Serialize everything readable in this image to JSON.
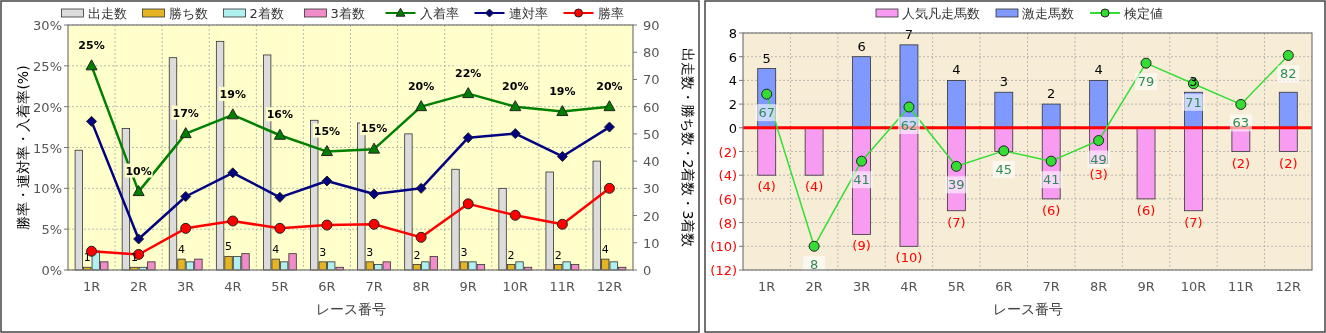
{
  "chart_data": [
    {
      "type": "bar",
      "categories": [
        "1R",
        "2R",
        "3R",
        "4R",
        "5R",
        "6R",
        "7R",
        "8R",
        "9R",
        "10R",
        "11R",
        "12R"
      ],
      "xlabel": "レース番号",
      "ylabel": "勝率・連対率・入着率(%)",
      "y2label": "出走数・勝ち数・2着数・3着数",
      "ylim": [
        0,
        30
      ],
      "yticks": [
        {
          "value": 0,
          "label": "0%"
        },
        {
          "value": 5,
          "label": "5%"
        },
        {
          "value": 10,
          "label": "10%"
        },
        {
          "value": 15,
          "label": "15%"
        },
        {
          "value": 20,
          "label": "20%"
        },
        {
          "value": 25,
          "label": "25%"
        },
        {
          "value": 30,
          "label": "30%"
        }
      ],
      "y2lim": [
        0,
        90
      ],
      "y2ticks": [
        0,
        10,
        20,
        30,
        40,
        50,
        60,
        70,
        80,
        90
      ],
      "grid": true,
      "legend": "top",
      "series": [
        {
          "name": "出走数",
          "type": "bar",
          "axis": "y2",
          "color": "#dcdcdc",
          "values": [
            44,
            52,
            78,
            84,
            79,
            55,
            54,
            50,
            37,
            30,
            36,
            40
          ]
        },
        {
          "name": "勝ち数",
          "type": "bar",
          "axis": "y2",
          "color": "#e6b422",
          "values": [
            1,
            1,
            4,
            5,
            4,
            3,
            3,
            2,
            3,
            2,
            2,
            4
          ],
          "value_labels": [
            "1",
            "1",
            "4",
            "5",
            "4",
            "3",
            "3",
            "2",
            "3",
            "2",
            "2",
            "4"
          ]
        },
        {
          "name": "2着数",
          "type": "bar",
          "axis": "y2",
          "color": "#b0f0f0",
          "values": [
            7,
            1,
            3,
            5,
            3,
            3,
            2,
            3,
            3,
            3,
            3,
            3
          ]
        },
        {
          "name": "3着数",
          "type": "bar",
          "axis": "y2",
          "color": "#f08cc8",
          "values": [
            3,
            3,
            4,
            6,
            6,
            1,
            3,
            5,
            2,
            1,
            2,
            1
          ]
        },
        {
          "name": "入着率",
          "type": "line",
          "color": "#008000",
          "marker": "triangle",
          "values": [
            25,
            9.6,
            16.7,
            19,
            16.5,
            14.5,
            14.8,
            20,
            21.6,
            20,
            19.4,
            20
          ],
          "value_labels": [
            "25%",
            "10%",
            "17%",
            "19%",
            "16%",
            "15%",
            "15%",
            "20%",
            "22%",
            "20%",
            "19%",
            "20%"
          ]
        },
        {
          "name": "連対率",
          "type": "line",
          "color": "#000080",
          "marker": "diamond",
          "values": [
            18.2,
            3.8,
            9,
            11.9,
            8.9,
            10.9,
            9.3,
            10,
            16.2,
            16.7,
            13.9,
            17.5
          ]
        },
        {
          "name": "勝率",
          "type": "line",
          "color": "#ff0000",
          "marker": "circle",
          "values": [
            2.3,
            1.9,
            5.1,
            6,
            5.1,
            5.5,
            5.6,
            4,
            8.1,
            6.7,
            5.6,
            10
          ]
        }
      ]
    },
    {
      "type": "bar",
      "stacked": true,
      "categories": [
        "1R",
        "2R",
        "3R",
        "4R",
        "5R",
        "6R",
        "7R",
        "8R",
        "9R",
        "10R",
        "11R",
        "12R"
      ],
      "xlabel": "レース番号",
      "ylim": [
        -12,
        8
      ],
      "yticks": [
        {
          "value": -12,
          "label": "(12)"
        },
        {
          "value": -10,
          "label": "(10)"
        },
        {
          "value": -8,
          "label": "(8)"
        },
        {
          "value": -6,
          "label": "(6)"
        },
        {
          "value": -4,
          "label": "(4)"
        },
        {
          "value": -2,
          "label": "(2)"
        },
        0,
        2,
        4,
        6,
        8
      ],
      "y2lim": [
        -1.2,
        90.7
      ],
      "grid": true,
      "legend": "top",
      "ref_lines": [
        {
          "axis": "y",
          "value": 0,
          "color": "#ff0000"
        }
      ],
      "series": [
        {
          "name": "人気凡走馬数",
          "type": "bar",
          "color": "#f79cf0",
          "values": [
            -4,
            -4,
            -9,
            -10,
            -7,
            -2,
            -6,
            -3,
            -6,
            -7,
            -2,
            -2
          ],
          "value_labels": [
            "(4)",
            "(4)",
            "(9)",
            "(10)",
            "(7)",
            null,
            "(6)",
            "(3)",
            "(6)",
            "(7)",
            "(2)",
            "(2)"
          ]
        },
        {
          "name": "激走馬数",
          "type": "bar",
          "color": "#7f99ff",
          "values": [
            5,
            0,
            6,
            7,
            4,
            3,
            2,
            4,
            0,
            3,
            0,
            3
          ],
          "value_labels": [
            "5",
            null,
            "6",
            "7",
            "4",
            "3",
            "2",
            "4",
            null,
            "3",
            null,
            null
          ]
        },
        {
          "name": "検定値",
          "type": "line",
          "axis": "y2",
          "color": "#33dd33",
          "marker": "circle",
          "values": [
            67,
            8,
            41,
            62,
            39,
            45,
            41,
            49,
            79,
            71,
            63,
            82
          ],
          "value_labels": [
            "67",
            "8",
            "41",
            "62",
            "39",
            "45",
            "41",
            "49",
            "79",
            "71",
            "63",
            "82"
          ]
        }
      ]
    }
  ]
}
